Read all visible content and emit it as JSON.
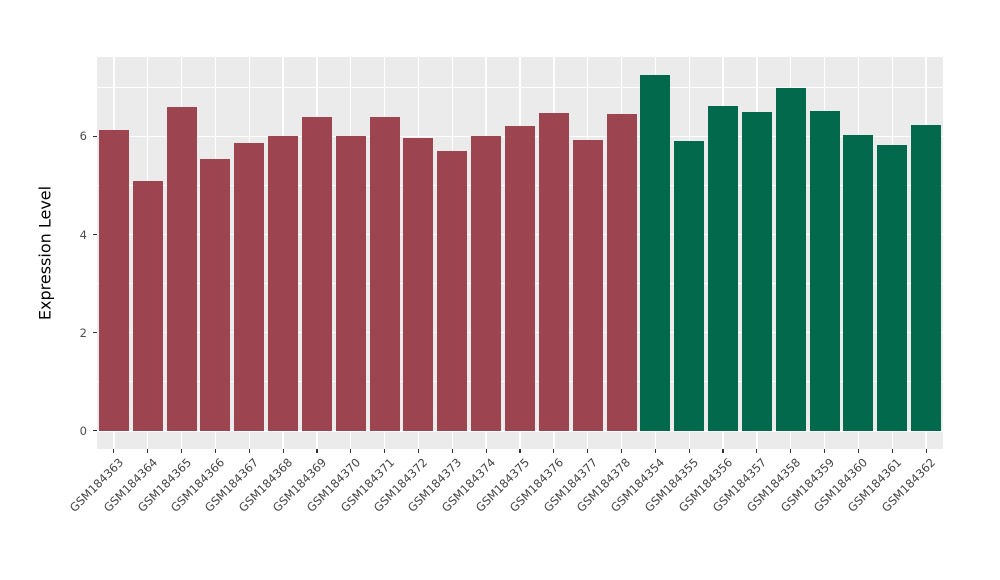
{
  "figure": {
    "background": "#ffffff",
    "panel_background": "#ebebeb",
    "grid_color": "#ffffff",
    "tick_color": "#333333",
    "axis_text_color": "#4d4d4d"
  },
  "chart_data": {
    "type": "bar",
    "title": "",
    "xlabel": "",
    "ylabel": "Expression Level",
    "legend": "none",
    "grid": true,
    "categories": [
      "GSM184363",
      "GSM184364",
      "GSM184365",
      "GSM184366",
      "GSM184367",
      "GSM184368",
      "GSM184369",
      "GSM184370",
      "GSM184371",
      "GSM184372",
      "GSM184373",
      "GSM184374",
      "GSM184375",
      "GSM184376",
      "GSM184377",
      "GSM184378",
      "GSM184354",
      "GSM184355",
      "GSM184356",
      "GSM184357",
      "GSM184358",
      "GSM184359",
      "GSM184360",
      "GSM184361",
      "GSM184362"
    ],
    "values": [
      6.14,
      5.1,
      6.61,
      5.55,
      5.87,
      6.0,
      6.39,
      6.01,
      6.39,
      5.96,
      5.7,
      6.0,
      6.22,
      6.47,
      5.92,
      6.45,
      7.25,
      5.9,
      6.63,
      6.49,
      6.98,
      6.51,
      6.03,
      5.83,
      6.23
    ],
    "bar_groups": [
      0,
      0,
      0,
      0,
      0,
      0,
      0,
      0,
      0,
      0,
      0,
      0,
      0,
      0,
      0,
      0,
      1,
      1,
      1,
      1,
      1,
      1,
      1,
      1,
      1
    ],
    "palette": [
      "#9c4450",
      "#02694c"
    ],
    "y_ticks": [
      0,
      2,
      4,
      6
    ],
    "y_minor_ticks": [
      1,
      3,
      5,
      7
    ],
    "ylim": [
      -0.37,
      7.62
    ]
  }
}
